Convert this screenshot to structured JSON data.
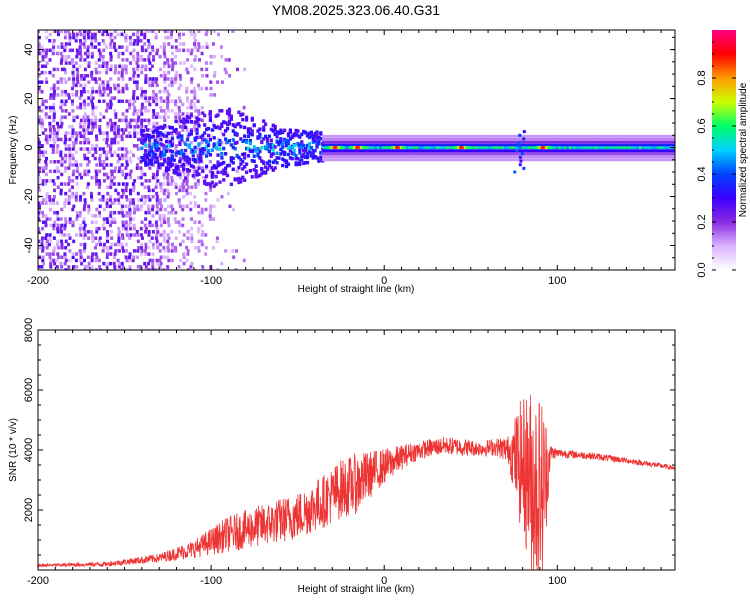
{
  "chart_data": [
    {
      "type": "heatmap",
      "title": "YM08.2025.323.06.40.G31",
      "xlabel": "Height of straight line (km)",
      "ylabel": "Frequency (Hz)",
      "xlim": [
        -200,
        168
      ],
      "ylim": [
        -50,
        48
      ],
      "x_ticks": [
        "-200",
        "-100",
        "0",
        "100"
      ],
      "x_tick_values": [
        -200,
        -100,
        0,
        100
      ],
      "y_ticks": [
        "-40",
        "-20",
        "0",
        "20",
        "40"
      ],
      "y_tick_values": [
        -40,
        -20,
        0,
        20,
        40
      ],
      "colorbar": {
        "label": "Normalized spectral amplitude",
        "range": [
          0,
          1
        ],
        "ticks": [
          "0.0",
          "0.2",
          "0.4",
          "0.6",
          "0.8"
        ],
        "tick_values": [
          0,
          0.2,
          0.4,
          0.6,
          0.8
        ],
        "colors": [
          "#ffffff",
          "#d9b3ff",
          "#8a2be2",
          "#3b00ff",
          "#0044ff",
          "#00d2ff",
          "#00ff66",
          "#ccff00",
          "#ff9900",
          "#ff0000",
          "#ff0080"
        ]
      },
      "features": {
        "noise_region_x": [
          -200,
          -110
        ],
        "burst_region_x": [
          -140,
          -35
        ],
        "carrier_frequency": 0,
        "peak_x": [
          -28,
          -15,
          8,
          45,
          92
        ],
        "disturbance_x": 78
      },
      "grid": false
    },
    {
      "type": "line",
      "xlabel": "Height of straight line (km)",
      "ylabel": "SNR (10 * v/v)",
      "xlim": [
        -200,
        168
      ],
      "ylim": [
        0,
        8000
      ],
      "x_ticks": [
        "-200",
        "-100",
        "0",
        "100"
      ],
      "x_tick_values": [
        -200,
        -100,
        0,
        100
      ],
      "y_ticks": [
        "2000",
        "4000",
        "6000",
        "8000"
      ],
      "y_tick_values": [
        2000,
        4000,
        6000,
        8000
      ],
      "color": "#ee3333",
      "envelope": {
        "x": [
          -200,
          -160,
          -130,
          -110,
          -90,
          -70,
          -50,
          -35,
          -25,
          -15,
          -5,
          5,
          15,
          25,
          35,
          45,
          55,
          65,
          72,
          78,
          84,
          88,
          92,
          96,
          100,
          120,
          140,
          168
        ],
        "y": [
          150,
          200,
          400,
          700,
          1200,
          1500,
          1800,
          2300,
          2700,
          2900,
          3300,
          3600,
          3900,
          4050,
          4150,
          4100,
          4050,
          4100,
          4000,
          3600,
          3100,
          2700,
          2700,
          3900,
          3900,
          3800,
          3650,
          3400
        ],
        "spread": [
          50,
          80,
          150,
          300,
          600,
          700,
          800,
          900,
          1000,
          1000,
          700,
          500,
          350,
          300,
          300,
          300,
          250,
          300,
          500,
          2000,
          3000,
          3500,
          3000,
          300,
          150,
          120,
          100,
          80
        ]
      },
      "grid": false
    }
  ]
}
